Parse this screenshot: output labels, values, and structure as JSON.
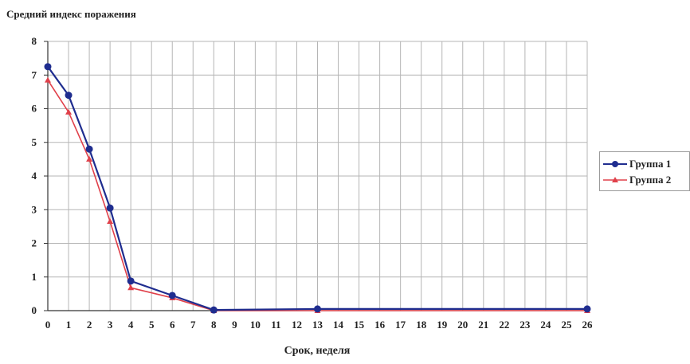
{
  "chart_data": {
    "type": "line",
    "title": "",
    "ylabel_text": "Средний индекс поражения",
    "xlabel": "Срок, неделя",
    "x_ticks": [
      "0",
      "1",
      "2",
      "3",
      "4",
      "5",
      "6",
      "7",
      "8",
      "9",
      "10",
      "11",
      "12",
      "13",
      "14",
      "15",
      "16",
      "17",
      "18",
      "19",
      "20",
      "21",
      "22",
      "23",
      "24",
      "25",
      "26"
    ],
    "y_ticks": [
      "0",
      "1",
      "2",
      "3",
      "4",
      "5",
      "6",
      "7",
      "8"
    ],
    "ylim": [
      0,
      8
    ],
    "xlim": [
      0,
      26
    ],
    "grid": true,
    "legend_placement": "right",
    "series": [
      {
        "name": "Группа 1",
        "color": "#1f2d8f",
        "marker": "circle",
        "points": [
          [
            0,
            7.25
          ],
          [
            1,
            6.4
          ],
          [
            2,
            4.8
          ],
          [
            3,
            3.05
          ],
          [
            4,
            0.88
          ],
          [
            6,
            0.45
          ],
          [
            8,
            0.02
          ],
          [
            13,
            0.05
          ],
          [
            26,
            0.05
          ]
        ]
      },
      {
        "name": "Группа 2",
        "color": "#e0404a",
        "marker": "triangle",
        "points": [
          [
            0,
            6.85
          ],
          [
            1,
            5.9
          ],
          [
            2,
            4.5
          ],
          [
            3,
            2.65
          ],
          [
            4,
            0.68
          ],
          [
            6,
            0.38
          ],
          [
            8,
            0.0
          ],
          [
            13,
            0.0
          ],
          [
            26,
            0.0
          ]
        ]
      }
    ]
  }
}
